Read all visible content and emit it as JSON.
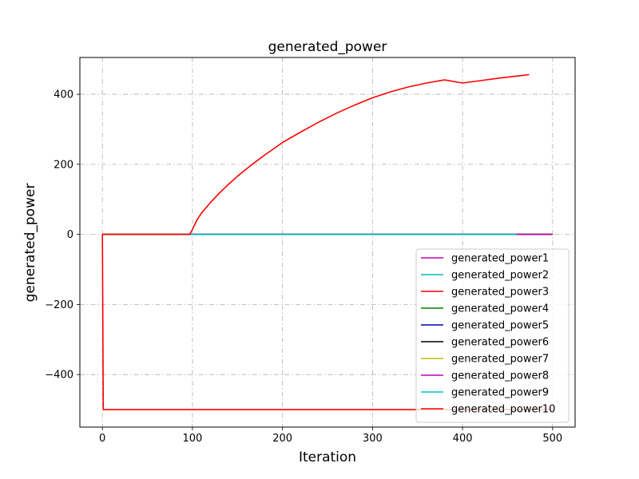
{
  "chart_data": {
    "type": "line",
    "title": "generated_power",
    "xlabel": "Iteration",
    "ylabel": "generated_power",
    "xlim": [
      -25,
      525
    ],
    "ylim": [
      -550,
      505
    ],
    "xticks": [
      0,
      100,
      200,
      300,
      400,
      500
    ],
    "yticks": [
      -400,
      -200,
      0,
      200,
      400
    ],
    "xtick_labels": [
      "0",
      "100",
      "200",
      "300",
      "400",
      "500"
    ],
    "ytick_labels": [
      "−400",
      "−200",
      "0",
      "200",
      "400"
    ],
    "grid": true,
    "legend_position": "lower-right",
    "series": [
      {
        "name": "generated_power1",
        "color": "#bf00bf",
        "x": [
          0,
          500
        ],
        "y": [
          0,
          0
        ]
      },
      {
        "name": "generated_power2",
        "color": "#00bfbf",
        "x": [
          0,
          500
        ],
        "y": [
          0,
          0
        ]
      },
      {
        "name": "generated_power3",
        "color": "#ff0000",
        "x": [
          0,
          1,
          2,
          100,
          200,
          300,
          400,
          500
        ],
        "y": [
          0,
          -500,
          -500,
          -500,
          -500,
          -500,
          -500,
          -500
        ]
      },
      {
        "name": "generated_power4",
        "color": "#008000",
        "x": [
          0,
          500
        ],
        "y": [
          0,
          0
        ]
      },
      {
        "name": "generated_power5",
        "color": "#0000bf",
        "x": [
          0,
          500
        ],
        "y": [
          0,
          0
        ]
      },
      {
        "name": "generated_power6",
        "color": "#000000",
        "x": [
          0,
          500
        ],
        "y": [
          0,
          0
        ]
      },
      {
        "name": "generated_power7",
        "color": "#bfbf00",
        "x": [
          0,
          500
        ],
        "y": [
          0,
          0
        ]
      },
      {
        "name": "generated_power8",
        "color": "#bf00bf",
        "x": [
          0,
          500
        ],
        "y": [
          0,
          0
        ]
      },
      {
        "name": "generated_power9",
        "color": "#00bfbf",
        "x": [
          0,
          460
        ],
        "y": [
          0,
          0
        ]
      },
      {
        "name": "generated_power10",
        "color": "#ff0000",
        "x": [
          0,
          1,
          50,
          97,
          100,
          105,
          110,
          120,
          130,
          140,
          150,
          160,
          170,
          180,
          190,
          200,
          220,
          240,
          260,
          280,
          300,
          320,
          340,
          360,
          380,
          400,
          420,
          440,
          460,
          474
        ],
        "y": [
          0,
          0,
          0,
          0,
          14,
          41,
          61,
          91,
          118,
          143,
          166,
          187,
          207,
          226,
          244,
          262,
          292,
          320,
          346,
          369,
          390,
          407,
          421,
          432,
          441,
          432,
          439,
          446,
          452,
          456
        ]
      }
    ]
  }
}
